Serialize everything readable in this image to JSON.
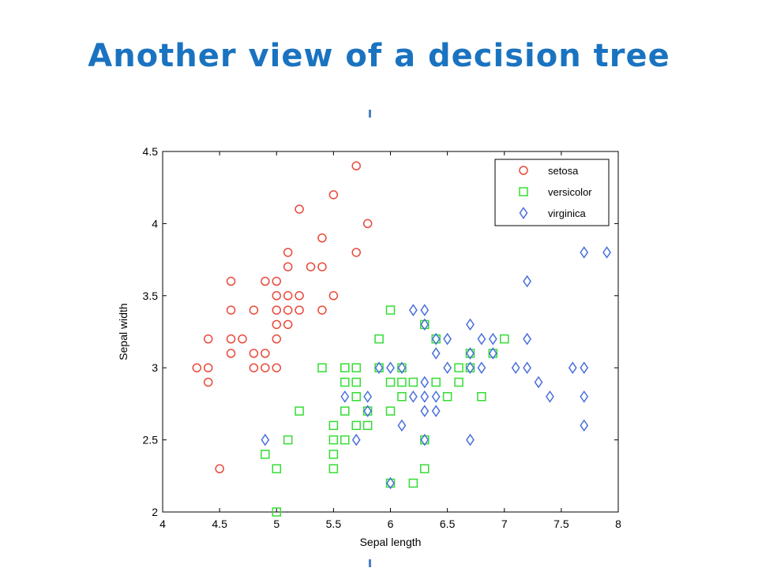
{
  "title": "Another view of a decision tree",
  "chart_data": {
    "type": "scatter",
    "xlabel": "Sepal length",
    "ylabel": "Sepal width",
    "xlim": [
      4,
      8
    ],
    "ylim": [
      2,
      4.5
    ],
    "xticks": [
      "4",
      "4.5",
      "5",
      "5.5",
      "6",
      "6.5",
      "7",
      "7.5",
      "8"
    ],
    "yticks": [
      "2",
      "2.5",
      "3",
      "3.5",
      "4",
      "4.5"
    ],
    "legend_position": "top-right",
    "series": [
      {
        "name": "setosa",
        "marker": "circle",
        "color": "#e8493a",
        "points": [
          [
            4.3,
            3
          ],
          [
            4.4,
            3
          ],
          [
            4.4,
            2.9
          ],
          [
            4.4,
            3.2
          ],
          [
            4.5,
            2.3
          ],
          [
            4.6,
            3.1
          ],
          [
            4.6,
            3.2
          ],
          [
            4.6,
            3.4
          ],
          [
            4.6,
            3.6
          ],
          [
            4.7,
            3.2
          ],
          [
            4.8,
            3
          ],
          [
            4.8,
            3.1
          ],
          [
            4.8,
            3.4
          ],
          [
            4.9,
            3
          ],
          [
            4.9,
            3.1
          ],
          [
            4.9,
            3.6
          ],
          [
            5,
            3
          ],
          [
            5,
            3.2
          ],
          [
            5,
            3.3
          ],
          [
            5,
            3.4
          ],
          [
            5,
            3.5
          ],
          [
            5,
            3.6
          ],
          [
            5.1,
            3.3
          ],
          [
            5.1,
            3.4
          ],
          [
            5.1,
            3.5
          ],
          [
            5.1,
            3.7
          ],
          [
            5.1,
            3.8
          ],
          [
            5.2,
            3.4
          ],
          [
            5.2,
            3.5
          ],
          [
            5.2,
            4.1
          ],
          [
            5.3,
            3.7
          ],
          [
            5.4,
            3.4
          ],
          [
            5.4,
            3.7
          ],
          [
            5.4,
            3.9
          ],
          [
            5.5,
            3.5
          ],
          [
            5.5,
            4.2
          ],
          [
            5.7,
            3.8
          ],
          [
            5.7,
            4.4
          ],
          [
            5.8,
            4
          ]
        ]
      },
      {
        "name": "versicolor",
        "marker": "square",
        "color": "#33dd33",
        "points": [
          [
            4.9,
            2.4
          ],
          [
            5,
            2
          ],
          [
            5,
            2.3
          ],
          [
            5.1,
            2.5
          ],
          [
            5.2,
            2.7
          ],
          [
            5.4,
            3
          ],
          [
            5.5,
            2.3
          ],
          [
            5.5,
            2.4
          ],
          [
            5.5,
            2.5
          ],
          [
            5.5,
            2.6
          ],
          [
            5.6,
            2.5
          ],
          [
            5.6,
            2.7
          ],
          [
            5.6,
            2.9
          ],
          [
            5.6,
            3
          ],
          [
            5.7,
            2.6
          ],
          [
            5.7,
            2.8
          ],
          [
            5.7,
            2.9
          ],
          [
            5.7,
            3
          ],
          [
            5.8,
            2.6
          ],
          [
            5.8,
            2.7
          ],
          [
            5.9,
            3
          ],
          [
            5.9,
            3.2
          ],
          [
            6,
            2.2
          ],
          [
            6,
            2.7
          ],
          [
            6,
            2.9
          ],
          [
            6,
            3.4
          ],
          [
            6.1,
            2.8
          ],
          [
            6.1,
            2.9
          ],
          [
            6.1,
            3
          ],
          [
            6.2,
            2.2
          ],
          [
            6.2,
            2.9
          ],
          [
            6.3,
            2.3
          ],
          [
            6.3,
            2.5
          ],
          [
            6.3,
            3.3
          ],
          [
            6.4,
            2.9
          ],
          [
            6.4,
            3.2
          ],
          [
            6.5,
            2.8
          ],
          [
            6.6,
            2.9
          ],
          [
            6.6,
            3
          ],
          [
            6.7,
            3
          ],
          [
            6.7,
            3.1
          ],
          [
            6.8,
            2.8
          ],
          [
            6.9,
            3.1
          ],
          [
            7,
            3.2
          ]
        ]
      },
      {
        "name": "virginica",
        "marker": "diamond",
        "color": "#4a6fdc",
        "points": [
          [
            4.9,
            2.5
          ],
          [
            5.6,
            2.8
          ],
          [
            5.7,
            2.5
          ],
          [
            5.8,
            2.7
          ],
          [
            5.8,
            2.8
          ],
          [
            5.9,
            3
          ],
          [
            6,
            2.2
          ],
          [
            6,
            3
          ],
          [
            6.1,
            2.6
          ],
          [
            6.1,
            3
          ],
          [
            6.2,
            2.8
          ],
          [
            6.2,
            3.4
          ],
          [
            6.3,
            2.5
          ],
          [
            6.3,
            2.7
          ],
          [
            6.3,
            2.8
          ],
          [
            6.3,
            2.9
          ],
          [
            6.3,
            3.3
          ],
          [
            6.3,
            3.4
          ],
          [
            6.4,
            2.7
          ],
          [
            6.4,
            2.8
          ],
          [
            6.4,
            3.1
          ],
          [
            6.4,
            3.2
          ],
          [
            6.5,
            3
          ],
          [
            6.5,
            3.2
          ],
          [
            6.7,
            2.5
          ],
          [
            6.7,
            3
          ],
          [
            6.7,
            3.1
          ],
          [
            6.7,
            3.3
          ],
          [
            6.8,
            3
          ],
          [
            6.8,
            3.2
          ],
          [
            6.9,
            3.1
          ],
          [
            6.9,
            3.2
          ],
          [
            7.1,
            3
          ],
          [
            7.2,
            3
          ],
          [
            7.2,
            3.2
          ],
          [
            7.2,
            3.6
          ],
          [
            7.3,
            2.9
          ],
          [
            7.4,
            2.8
          ],
          [
            7.6,
            3
          ],
          [
            7.7,
            2.6
          ],
          [
            7.7,
            2.8
          ],
          [
            7.7,
            3
          ],
          [
            7.7,
            3.8
          ],
          [
            7.9,
            3.8
          ]
        ]
      }
    ]
  }
}
